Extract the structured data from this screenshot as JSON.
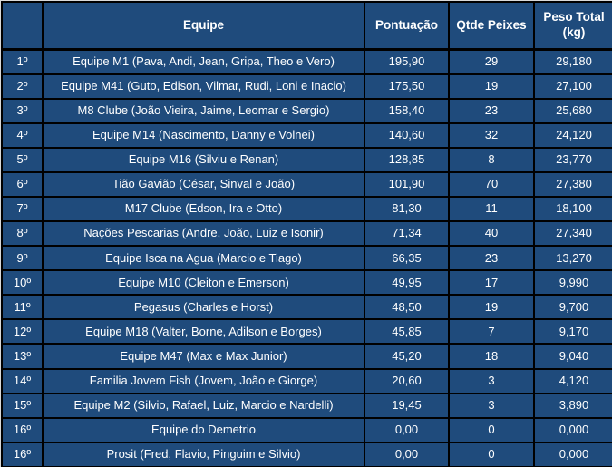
{
  "colors": {
    "cell_background": "#1F4B7C",
    "grid_border": "#000000",
    "text": "#FFFFFF"
  },
  "table": {
    "columns": [
      {
        "key": "rank",
        "label": ""
      },
      {
        "key": "team",
        "label": "Equipe"
      },
      {
        "key": "score",
        "label": "Pontuação"
      },
      {
        "key": "fish",
        "label": "Qtde Peixes"
      },
      {
        "key": "weight",
        "label": "Peso Total (kg)"
      }
    ],
    "rows": [
      {
        "rank": "1º",
        "team": "Equipe M1 (Pava, Andi, Jean, Gripa, Theo e Vero)",
        "score": "195,90",
        "fish": "29",
        "weight": "29,180"
      },
      {
        "rank": "2º",
        "team": "Equipe M41 (Guto, Edison, Vilmar, Rudi, Loni e Inacio)",
        "score": "175,50",
        "fish": "19",
        "weight": "27,100"
      },
      {
        "rank": "3º",
        "team": "M8 Clube (João Vieira, Jaime, Leomar e Sergio)",
        "score": "158,40",
        "fish": "23",
        "weight": "25,680"
      },
      {
        "rank": "4º",
        "team": "Equipe M14 (Nascimento, Danny e Volnei)",
        "score": "140,60",
        "fish": "32",
        "weight": "24,120"
      },
      {
        "rank": "5º",
        "team": "Equipe M16 (Silviu e Renan)",
        "score": "128,85",
        "fish": "8",
        "weight": "23,770"
      },
      {
        "rank": "6º",
        "team": "Tião Gavião (César, Sinval e João)",
        "score": "101,90",
        "fish": "70",
        "weight": "27,380"
      },
      {
        "rank": "7º",
        "team": "M17 Clube (Edson, Ira e Otto)",
        "score": "81,30",
        "fish": "11",
        "weight": "18,100"
      },
      {
        "rank": "8º",
        "team": "Nações Pescarias (Andre, João, Luiz e Isonir)",
        "score": "71,34",
        "fish": "40",
        "weight": "27,340"
      },
      {
        "rank": "9º",
        "team": "Equipe Isca na Agua (Marcio e Tiago)",
        "score": "66,35",
        "fish": "23",
        "weight": "13,270"
      },
      {
        "rank": "10º",
        "team": "Equipe M10 (Cleiton e Emerson)",
        "score": "49,95",
        "fish": "17",
        "weight": "9,990"
      },
      {
        "rank": "11º",
        "team": "Pegasus (Charles e Horst)",
        "score": "48,50",
        "fish": "19",
        "weight": "9,700"
      },
      {
        "rank": "12º",
        "team": "Equipe M18 (Valter, Borne, Adilson e Borges)",
        "score": "45,85",
        "fish": "7",
        "weight": "9,170"
      },
      {
        "rank": "13º",
        "team": "Equipe M47 (Max e Max Junior)",
        "score": "45,20",
        "fish": "18",
        "weight": "9,040"
      },
      {
        "rank": "14º",
        "team": "Familia Jovem Fish (Jovem, João e Giorge)",
        "score": "20,60",
        "fish": "3",
        "weight": "4,120"
      },
      {
        "rank": "15º",
        "team": "Equipe M2 (Silvio, Rafael, Luiz, Marcio e Nardelli)",
        "score": "19,45",
        "fish": "3",
        "weight": "3,890"
      },
      {
        "rank": "16º",
        "team": "Equipe do Demetrio",
        "score": "0,00",
        "fish": "0",
        "weight": "0,000"
      },
      {
        "rank": "16º",
        "team": "Prosit (Fred, Flavio, Pinguim e Silvio)",
        "score": "0,00",
        "fish": "0",
        "weight": "0,000"
      }
    ]
  }
}
